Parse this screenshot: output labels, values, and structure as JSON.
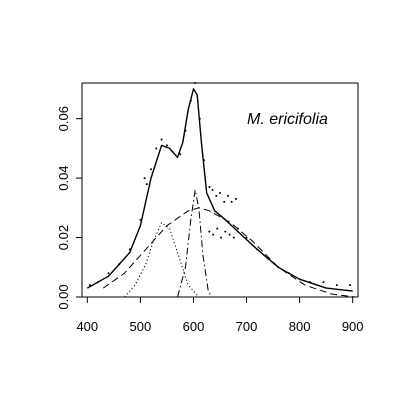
{
  "chart_data": {
    "type": "line",
    "annotation": "M. ericifolia",
    "xlim": [
      390,
      910
    ],
    "ylim": [
      0,
      0.072
    ],
    "x_ticks": [
      400,
      500,
      600,
      700,
      800,
      900
    ],
    "x_tick_labels": [
      "400",
      "500",
      "600",
      "700",
      "800",
      "900"
    ],
    "y_ticks": [
      0.0,
      0.02,
      0.04,
      0.06
    ],
    "y_tick_labels": [
      "0.00",
      "0.02",
      "0.04",
      "0.06"
    ],
    "grid": false,
    "legend": "none",
    "series": [
      {
        "style": "solid",
        "role": "overall-fit",
        "x": [
          400,
          440,
          480,
          500,
          520,
          540,
          555,
          570,
          580,
          590,
          600,
          607,
          615,
          625,
          640,
          660,
          690,
          720,
          760,
          800,
          850,
          900
        ],
        "y": [
          0.003,
          0.007,
          0.015,
          0.024,
          0.04,
          0.051,
          0.05,
          0.047,
          0.052,
          0.063,
          0.07,
          0.068,
          0.052,
          0.035,
          0.029,
          0.026,
          0.021,
          0.016,
          0.01,
          0.006,
          0.003,
          0.002
        ]
      },
      {
        "style": "dotted",
        "role": "component-1",
        "x": [
          470,
          490,
          510,
          525,
          540,
          555,
          570,
          590,
          610
        ],
        "y": [
          0.0,
          0.004,
          0.011,
          0.019,
          0.025,
          0.023,
          0.015,
          0.004,
          0.0
        ]
      },
      {
        "style": "dashed",
        "role": "component-2",
        "x": [
          430,
          470,
          510,
          550,
          590,
          610,
          630,
          670,
          710,
          760,
          810,
          860,
          905
        ],
        "y": [
          0.003,
          0.008,
          0.016,
          0.024,
          0.029,
          0.03,
          0.029,
          0.025,
          0.019,
          0.01,
          0.004,
          0.001,
          0.0
        ]
      },
      {
        "style": "dashdot",
        "role": "component-3",
        "x": [
          570,
          585,
          595,
          603,
          610,
          618,
          628,
          635
        ],
        "y": [
          0.0,
          0.01,
          0.026,
          0.036,
          0.03,
          0.014,
          0.002,
          0.0
        ]
      }
    ],
    "scatter": [
      {
        "x": 405,
        "y": 0.004
      },
      {
        "x": 420,
        "y": 0.005
      },
      {
        "x": 440,
        "y": 0.008
      },
      {
        "x": 460,
        "y": 0.011
      },
      {
        "x": 480,
        "y": 0.016
      },
      {
        "x": 500,
        "y": 0.026
      },
      {
        "x": 508,
        "y": 0.04
      },
      {
        "x": 512,
        "y": 0.038
      },
      {
        "x": 520,
        "y": 0.043
      },
      {
        "x": 530,
        "y": 0.05
      },
      {
        "x": 540,
        "y": 0.053
      },
      {
        "x": 550,
        "y": 0.051
      },
      {
        "x": 560,
        "y": 0.049
      },
      {
        "x": 575,
        "y": 0.048
      },
      {
        "x": 585,
        "y": 0.056
      },
      {
        "x": 595,
        "y": 0.066
      },
      {
        "x": 603,
        "y": 0.072
      },
      {
        "x": 612,
        "y": 0.06
      },
      {
        "x": 620,
        "y": 0.046
      },
      {
        "x": 630,
        "y": 0.037
      },
      {
        "x": 636,
        "y": 0.036
      },
      {
        "x": 643,
        "y": 0.034
      },
      {
        "x": 650,
        "y": 0.035
      },
      {
        "x": 658,
        "y": 0.032
      },
      {
        "x": 665,
        "y": 0.034
      },
      {
        "x": 672,
        "y": 0.032
      },
      {
        "x": 680,
        "y": 0.033
      },
      {
        "x": 630,
        "y": 0.022
      },
      {
        "x": 637,
        "y": 0.021
      },
      {
        "x": 645,
        "y": 0.023
      },
      {
        "x": 652,
        "y": 0.02
      },
      {
        "x": 660,
        "y": 0.022
      },
      {
        "x": 668,
        "y": 0.021
      },
      {
        "x": 676,
        "y": 0.02
      },
      {
        "x": 684,
        "y": 0.023
      },
      {
        "x": 700,
        "y": 0.02
      },
      {
        "x": 720,
        "y": 0.016
      },
      {
        "x": 740,
        "y": 0.013
      },
      {
        "x": 760,
        "y": 0.01
      },
      {
        "x": 780,
        "y": 0.008
      },
      {
        "x": 800,
        "y": 0.006
      },
      {
        "x": 820,
        "y": 0.005
      },
      {
        "x": 845,
        "y": 0.005
      },
      {
        "x": 870,
        "y": 0.004
      },
      {
        "x": 895,
        "y": 0.004
      }
    ]
  }
}
